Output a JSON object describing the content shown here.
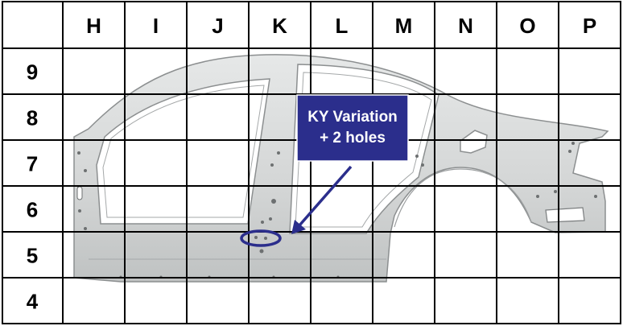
{
  "grid": {
    "columns": [
      "H",
      "I",
      "J",
      "K",
      "L",
      "M",
      "N",
      "O",
      "P"
    ],
    "rows": [
      "9",
      "8",
      "7",
      "6",
      "5",
      "4"
    ]
  },
  "callout": {
    "line1": "KY Variation",
    "line2": "+ 2 holes",
    "fill_color": "#2b2e8c",
    "marker_color": "#2b2e8c"
  },
  "part": {
    "name": "body-side-outer-panel",
    "color": "#d4d6d6",
    "edge_color": "#8c8f90"
  }
}
